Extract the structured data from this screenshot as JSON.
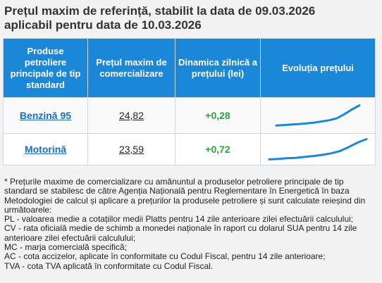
{
  "title_line1": "Prețul maxim de referință, stabilit la data de 09.03.2026",
  "title_line2": "aplicabil pentru data de 10.03.2026",
  "table": {
    "headers": [
      "Produse petroliere principale de tip standard",
      "Prețul maxim de comercializare",
      "Dinamica zilnică a prețului (lei)",
      "Evoluția prețului"
    ],
    "rows": [
      {
        "product": "Benzină 95",
        "price": "24,82",
        "delta": "+0,28",
        "trend": [
          0.08,
          0.1,
          0.12,
          0.14,
          0.17,
          0.2,
          0.25,
          0.3,
          0.38,
          0.55,
          0.75,
          0.92
        ]
      },
      {
        "product": "Motorină",
        "price": "23,59",
        "delta": "+0,72",
        "trend": [
          0.05,
          0.07,
          0.1,
          0.12,
          0.16,
          0.2,
          0.25,
          0.32,
          0.42,
          0.6,
          0.8,
          0.95
        ]
      }
    ],
    "trend_color": "#1a87d8"
  },
  "notes": [
    "* Prețurile maxime de comercializare cu amănuntul a produselor petroliere principale de tip standard se stabilesc de către Agenția Națională pentru Reglementare în Energetică în baza Metodologiei de calcul și aplicare a prețurilor la produsele petroliere și sunt calculate reieșind din următoarele:",
    "PL - valoarea medie a cotațiilor medii Platts pentru 14 zile anterioare zilei efectuării calculului;",
    "CV - rata oficială medie de schimb a monedei naționale în raport cu dolarul SUA pentru 14 zile anterioare zilei efectuării calculului;",
    "MC - marja comercială specifică;",
    "AC - cota accizelor, aplicate în conformitate cu Codul Fiscal, pentru 14 zile anterioare;",
    "TVA - cota TVA aplicată în conformitate cu Codul Fiscal."
  ]
}
